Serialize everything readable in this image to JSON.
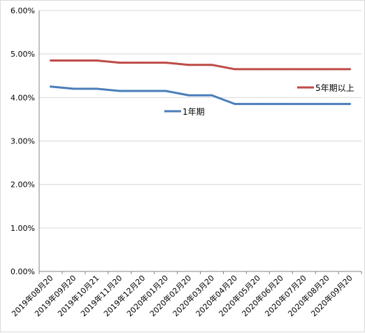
{
  "chart_data": {
    "type": "line",
    "categories": [
      "2019年08月20",
      "2019年09月20",
      "2019年10月21",
      "2019年11月20",
      "2019年12月20",
      "2020年01月20",
      "2020年02月20",
      "2020年03月20",
      "2020年04月20",
      "2020年05月20",
      "2020年06月20",
      "2020年07月20",
      "2020年08月20",
      "2020年09月20"
    ],
    "series": [
      {
        "name": "1年期",
        "color": "#4a7ebb",
        "values": [
          4.25,
          4.2,
          4.2,
          4.15,
          4.15,
          4.15,
          4.05,
          4.05,
          3.85,
          3.85,
          3.85,
          3.85,
          3.85,
          3.85
        ]
      },
      {
        "name": "5年期以上",
        "color": "#be4b48",
        "values": [
          4.85,
          4.85,
          4.85,
          4.8,
          4.8,
          4.8,
          4.75,
          4.75,
          4.65,
          4.65,
          4.65,
          4.65,
          4.65,
          4.65
        ]
      }
    ],
    "yticks": [
      "0.00%",
      "1.00%",
      "2.00%",
      "3.00%",
      "4.00%",
      "5.00%",
      "6.00%"
    ],
    "ylim": [
      0,
      6
    ],
    "grid": "horizontal",
    "legend": "inline labels near series ends"
  }
}
